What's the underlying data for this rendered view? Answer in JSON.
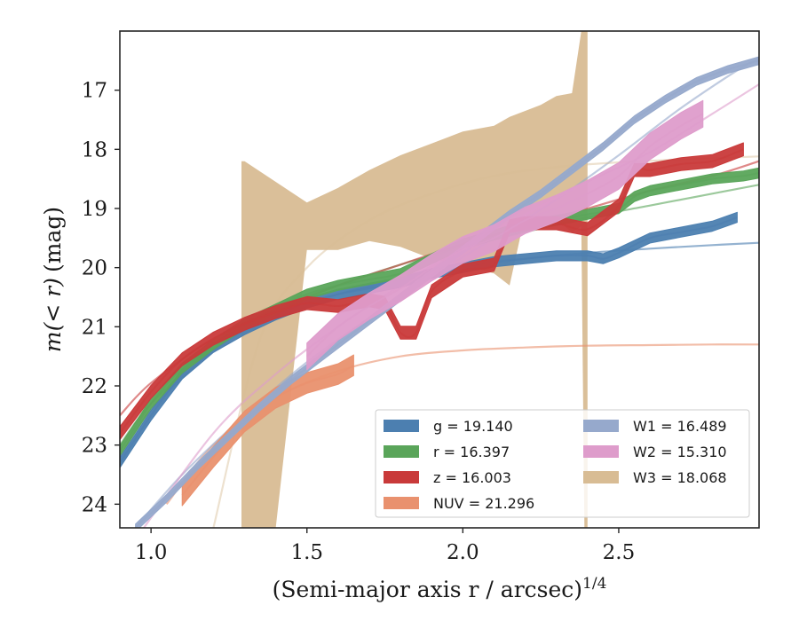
{
  "chart_data": {
    "type": "line",
    "xlabel": "(Semi-major axis r / arcsec)",
    "xlabel_exponent": "1/4",
    "ylabel_main": "m(< r)",
    "ylabel_unit": "(mag)",
    "xlim": [
      0.9,
      2.95
    ],
    "ylim": [
      24.4,
      16.0
    ],
    "y_inverted": true,
    "xticks": [
      1.0,
      1.5,
      2.0,
      2.5
    ],
    "xtick_labels": [
      "1.0",
      "1.5",
      "2.0",
      "2.5"
    ],
    "yticks": [
      17,
      18,
      19,
      20,
      21,
      22,
      23,
      24
    ],
    "ytick_labels": [
      "17",
      "18",
      "19",
      "20",
      "21",
      "22",
      "23",
      "24"
    ],
    "grid": false,
    "legend_position": "lower-right",
    "series": [
      {
        "name": "g",
        "legend_label": "g = 19.140",
        "color": "#4c7fb0",
        "x": [
          0.9,
          1.0,
          1.1,
          1.2,
          1.3,
          1.4,
          1.5,
          1.6,
          1.7,
          1.8,
          1.9,
          2.0,
          2.1,
          2.2,
          2.3,
          2.4,
          2.45,
          2.5,
          2.6,
          2.7,
          2.8,
          2.88
        ],
        "y": [
          23.3,
          22.5,
          21.8,
          21.35,
          21.05,
          20.8,
          20.6,
          20.45,
          20.35,
          20.25,
          20.1,
          20.0,
          19.9,
          19.85,
          19.8,
          19.8,
          19.85,
          19.75,
          19.5,
          19.4,
          19.3,
          19.15
        ],
        "band_width": 0.17,
        "model_x": [
          0.9,
          1.0,
          1.2,
          1.4,
          1.6,
          1.8,
          2.0,
          2.2,
          2.4,
          2.6,
          2.8,
          2.95
        ],
        "model_y": [
          23.2,
          22.4,
          21.4,
          20.8,
          20.45,
          20.2,
          20.0,
          19.85,
          19.75,
          19.68,
          19.62,
          19.58
        ]
      },
      {
        "name": "r",
        "legend_label": "r = 16.397",
        "color": "#5aa55a",
        "x": [
          0.9,
          1.0,
          1.1,
          1.2,
          1.3,
          1.4,
          1.5,
          1.6,
          1.7,
          1.8,
          1.9,
          2.0,
          2.1,
          2.2,
          2.3,
          2.4,
          2.5,
          2.55,
          2.6,
          2.7,
          2.8,
          2.9,
          2.95
        ],
        "y": [
          23.1,
          22.3,
          21.7,
          21.3,
          20.95,
          20.7,
          20.45,
          20.3,
          20.2,
          20.1,
          19.85,
          19.6,
          19.45,
          19.3,
          19.2,
          19.1,
          19.0,
          18.8,
          18.7,
          18.6,
          18.5,
          18.45,
          18.4
        ],
        "band_width": 0.17,
        "model_x": [
          0.9,
          1.0,
          1.2,
          1.4,
          1.6,
          1.8,
          2.0,
          2.2,
          2.4,
          2.6,
          2.8,
          2.95
        ],
        "model_y": [
          23.0,
          22.3,
          21.35,
          20.75,
          20.3,
          19.95,
          19.65,
          19.4,
          19.15,
          18.95,
          18.75,
          18.6
        ]
      },
      {
        "name": "z",
        "legend_label": "z = 16.003",
        "color": "#c93a3a",
        "x": [
          0.9,
          1.0,
          1.1,
          1.2,
          1.3,
          1.4,
          1.5,
          1.6,
          1.7,
          1.75,
          1.8,
          1.85,
          1.9,
          2.0,
          2.1,
          2.15,
          2.2,
          2.3,
          2.4,
          2.5,
          2.55,
          2.6,
          2.7,
          2.8,
          2.9
        ],
        "y": [
          22.8,
          22.1,
          21.55,
          21.2,
          20.95,
          20.75,
          20.6,
          20.65,
          20.55,
          20.6,
          21.1,
          21.1,
          20.4,
          20.05,
          19.95,
          19.3,
          19.25,
          19.25,
          19.35,
          18.95,
          18.35,
          18.35,
          18.25,
          18.2,
          18.0
        ],
        "band_width": 0.22,
        "model_x": [
          0.9,
          1.0,
          1.2,
          1.4,
          1.6,
          1.8,
          2.0,
          2.2,
          2.4,
          2.6,
          2.8,
          2.95
        ],
        "model_y": [
          22.5,
          21.95,
          21.2,
          20.7,
          20.3,
          19.95,
          19.6,
          19.3,
          19.0,
          18.7,
          18.45,
          18.2
        ]
      },
      {
        "name": "NUV",
        "legend_label": "NUV = 21.296",
        "color": "#e9916e",
        "x": [
          1.1,
          1.2,
          1.3,
          1.4,
          1.5,
          1.6,
          1.65
        ],
        "y": [
          23.85,
          23.2,
          22.6,
          22.2,
          21.95,
          21.8,
          21.65
        ],
        "band_width": 0.35,
        "model_x": [
          1.05,
          1.2,
          1.4,
          1.6,
          1.8,
          2.0,
          2.2,
          2.4,
          2.6,
          2.8,
          2.95
        ],
        "model_y": [
          24.0,
          23.0,
          22.2,
          21.75,
          21.5,
          21.4,
          21.35,
          21.32,
          21.31,
          21.3,
          21.3
        ]
      },
      {
        "name": "W1",
        "legend_label": "W1 = 16.489",
        "color": "#96a9cc",
        "x": [
          0.95,
          1.05,
          1.15,
          1.25,
          1.35,
          1.45,
          1.55,
          1.65,
          1.75,
          1.85,
          1.95,
          2.05,
          2.15,
          2.25,
          2.35,
          2.45,
          2.55,
          2.65,
          2.75,
          2.85,
          2.95
        ],
        "y": [
          24.4,
          23.9,
          23.35,
          22.85,
          22.35,
          21.9,
          21.5,
          21.1,
          20.7,
          20.3,
          19.9,
          19.5,
          19.1,
          18.75,
          18.35,
          17.95,
          17.5,
          17.15,
          16.85,
          16.65,
          16.5
        ],
        "band_width": 0.13,
        "model_x": [
          0.95,
          1.1,
          1.3,
          1.5,
          1.7,
          1.9,
          2.1,
          2.3,
          2.5,
          2.7,
          2.9,
          2.95
        ],
        "model_y": [
          24.4,
          23.5,
          22.5,
          21.6,
          20.85,
          20.15,
          19.5,
          18.85,
          18.1,
          17.3,
          16.6,
          16.5
        ]
      },
      {
        "name": "W2",
        "legend_label": "W2 = 15.310",
        "color": "#de9ccb",
        "x": [
          1.5,
          1.6,
          1.7,
          1.8,
          1.9,
          2.0,
          2.1,
          2.2,
          2.3,
          2.4,
          2.5,
          2.6,
          2.7,
          2.77
        ],
        "y": [
          21.5,
          21.0,
          20.65,
          20.35,
          20.0,
          19.7,
          19.5,
          19.2,
          19.0,
          18.75,
          18.45,
          17.95,
          17.6,
          17.4
        ],
        "band_width": 0.45,
        "model_x": [
          0.95,
          1.2,
          1.4,
          1.6,
          1.8,
          2.0,
          2.2,
          2.4,
          2.6,
          2.8,
          2.95
        ],
        "model_y": [
          24.6,
          22.8,
          21.8,
          21.0,
          20.3,
          19.65,
          19.1,
          18.55,
          18.05,
          17.4,
          16.9
        ]
      },
      {
        "name": "W3",
        "legend_label": "W3 = 18.068",
        "color": "#d8bc94",
        "band_x": [
          1.29,
          1.3,
          1.4,
          1.5,
          1.6,
          1.7,
          1.8,
          1.9,
          2.0,
          2.1,
          2.15,
          2.2,
          2.25,
          2.3,
          2.35,
          2.38,
          2.39,
          2.4
        ],
        "band_upper": [
          18.2,
          18.2,
          18.55,
          18.9,
          18.65,
          18.35,
          18.1,
          17.9,
          17.7,
          17.6,
          17.45,
          17.35,
          17.25,
          17.1,
          17.05,
          16.0,
          16.0,
          16.0
        ],
        "band_lower": [
          24.4,
          24.4,
          24.4,
          19.7,
          19.7,
          19.55,
          19.65,
          19.85,
          19.95,
          20.1,
          20.3,
          19.1,
          19.3,
          19.2,
          19.4,
          19.3,
          24.4,
          24.4
        ],
        "model_x": [
          1.2,
          1.35,
          1.5,
          1.7,
          1.9,
          2.1,
          2.3,
          2.5,
          2.7,
          2.95
        ],
        "model_y": [
          24.4,
          21.2,
          20.0,
          19.2,
          18.75,
          18.45,
          18.3,
          18.22,
          18.17,
          18.12
        ]
      }
    ]
  }
}
